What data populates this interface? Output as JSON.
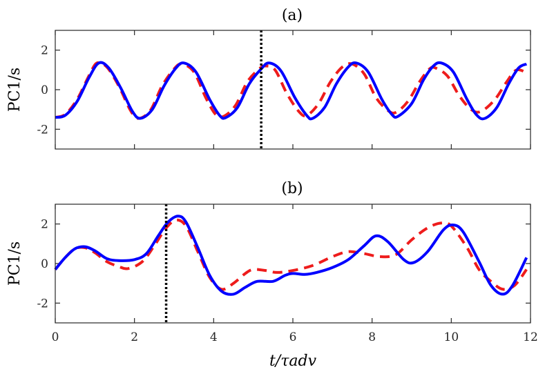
{
  "chart_data": [
    {
      "type": "line",
      "panel": "a",
      "title": "(a)",
      "ylabel": "PC1/s",
      "xlabel": "",
      "xlim": [
        0,
        12
      ],
      "ylim": [
        -3,
        3
      ],
      "yticks": [
        -2,
        0,
        2
      ],
      "yticklabels": [
        "-2",
        "0",
        "2"
      ],
      "xticks": [
        0,
        2,
        4,
        6,
        8,
        10,
        12
      ],
      "xticklabels": [],
      "marker_x": 5.2,
      "marker_style": "black dotted vertical line",
      "series": [
        {
          "name": "solid",
          "color": "#0000ff",
          "style": "solid",
          "points": [
            [
              0,
              -1.4
            ],
            [
              0.25,
              -1.3
            ],
            [
              0.55,
              -0.6
            ],
            [
              0.85,
              0.6
            ],
            [
              1.1,
              1.35
            ],
            [
              1.35,
              1.1
            ],
            [
              1.65,
              0.1
            ],
            [
              1.95,
              -1.1
            ],
            [
              2.15,
              -1.45
            ],
            [
              2.45,
              -1.0
            ],
            [
              2.75,
              0.2
            ],
            [
              3.05,
              1.1
            ],
            [
              3.25,
              1.35
            ],
            [
              3.55,
              0.9
            ],
            [
              3.9,
              -0.5
            ],
            [
              4.15,
              -1.3
            ],
            [
              4.3,
              -1.42
            ],
            [
              4.6,
              -0.9
            ],
            [
              4.9,
              0.3
            ],
            [
              5.2,
              1.05
            ],
            [
              5.4,
              1.35
            ],
            [
              5.7,
              0.95
            ],
            [
              6.05,
              -0.4
            ],
            [
              6.35,
              -1.3
            ],
            [
              6.5,
              -1.45
            ],
            [
              6.8,
              -0.9
            ],
            [
              7.1,
              0.3
            ],
            [
              7.4,
              1.15
            ],
            [
              7.6,
              1.35
            ],
            [
              7.9,
              0.9
            ],
            [
              8.25,
              -0.5
            ],
            [
              8.5,
              -1.25
            ],
            [
              8.65,
              -1.35
            ],
            [
              9.0,
              -0.7
            ],
            [
              9.3,
              0.5
            ],
            [
              9.55,
              1.2
            ],
            [
              9.75,
              1.35
            ],
            [
              10.05,
              0.9
            ],
            [
              10.4,
              -0.5
            ],
            [
              10.65,
              -1.3
            ],
            [
              10.85,
              -1.45
            ],
            [
              11.15,
              -0.9
            ],
            [
              11.45,
              0.3
            ],
            [
              11.7,
              1.1
            ],
            [
              11.9,
              1.3
            ]
          ]
        },
        {
          "name": "dashed",
          "color": "#ee1c1c",
          "style": "dashed",
          "points": [
            [
              0,
              -1.4
            ],
            [
              0.25,
              -1.25
            ],
            [
              0.55,
              -0.5
            ],
            [
              0.85,
              0.7
            ],
            [
              1.05,
              1.35
            ],
            [
              1.3,
              1.15
            ],
            [
              1.6,
              0.2
            ],
            [
              1.9,
              -1.05
            ],
            [
              2.1,
              -1.45
            ],
            [
              2.4,
              -1.05
            ],
            [
              2.7,
              0.2
            ],
            [
              3.0,
              1.05
            ],
            [
              3.2,
              1.3
            ],
            [
              3.5,
              0.9
            ],
            [
              3.8,
              -0.4
            ],
            [
              4.05,
              -1.25
            ],
            [
              4.25,
              -1.35
            ],
            [
              4.55,
              -0.8
            ],
            [
              4.85,
              0.4
            ],
            [
              5.15,
              1.05
            ],
            [
              5.3,
              1.2
            ],
            [
              5.55,
              1.0
            ],
            [
              5.85,
              -0.2
            ],
            [
              6.15,
              -1.1
            ],
            [
              6.35,
              -1.3
            ],
            [
              6.65,
              -0.7
            ],
            [
              6.95,
              0.4
            ],
            [
              7.25,
              1.15
            ],
            [
              7.5,
              1.3
            ],
            [
              7.8,
              0.8
            ],
            [
              8.1,
              -0.4
            ],
            [
              8.4,
              -1.05
            ],
            [
              8.6,
              -1.15
            ],
            [
              8.9,
              -0.6
            ],
            [
              9.2,
              0.4
            ],
            [
              9.45,
              1.05
            ],
            [
              9.6,
              1.1
            ],
            [
              9.9,
              0.7
            ],
            [
              10.2,
              -0.3
            ],
            [
              10.5,
              -1.0
            ],
            [
              10.75,
              -1.1
            ],
            [
              11.1,
              -0.5
            ],
            [
              11.4,
              0.4
            ],
            [
              11.65,
              1.0
            ],
            [
              11.95,
              0.8
            ]
          ]
        }
      ]
    },
    {
      "type": "line",
      "panel": "b",
      "title": "(b)",
      "ylabel": "PC1/s",
      "xlabel": "t/τadv",
      "xlim": [
        0,
        12
      ],
      "ylim": [
        -3,
        3
      ],
      "yticks": [
        -2,
        0,
        2
      ],
      "yticklabels": [
        "-2",
        "0",
        "2"
      ],
      "xticks": [
        0,
        2,
        4,
        6,
        8,
        10,
        12
      ],
      "xticklabels": [
        "0",
        "2",
        "4",
        "6",
        "8",
        "10",
        "12"
      ],
      "marker_x": 2.8,
      "marker_style": "black dotted vertical line",
      "series": [
        {
          "name": "solid",
          "color": "#0000ff",
          "style": "solid",
          "points": [
            [
              0,
              -0.3
            ],
            [
              0.25,
              0.3
            ],
            [
              0.5,
              0.75
            ],
            [
              0.75,
              0.85
            ],
            [
              1.0,
              0.65
            ],
            [
              1.3,
              0.25
            ],
            [
              1.6,
              0.15
            ],
            [
              2.0,
              0.2
            ],
            [
              2.3,
              0.5
            ],
            [
              2.6,
              1.4
            ],
            [
              2.85,
              2.1
            ],
            [
              3.1,
              2.4
            ],
            [
              3.3,
              2.1
            ],
            [
              3.6,
              0.8
            ],
            [
              3.9,
              -0.6
            ],
            [
              4.2,
              -1.4
            ],
            [
              4.5,
              -1.55
            ],
            [
              4.8,
              -1.2
            ],
            [
              5.1,
              -0.9
            ],
            [
              5.5,
              -0.9
            ],
            [
              5.8,
              -0.6
            ],
            [
              6.0,
              -0.5
            ],
            [
              6.3,
              -0.55
            ],
            [
              6.6,
              -0.45
            ],
            [
              7.0,
              -0.2
            ],
            [
              7.4,
              0.2
            ],
            [
              7.8,
              0.9
            ],
            [
              8.1,
              1.4
            ],
            [
              8.4,
              1.1
            ],
            [
              8.8,
              0.2
            ],
            [
              9.05,
              0.05
            ],
            [
              9.4,
              0.6
            ],
            [
              9.8,
              1.7
            ],
            [
              10.05,
              1.95
            ],
            [
              10.3,
              1.6
            ],
            [
              10.7,
              0.1
            ],
            [
              11.0,
              -1.1
            ],
            [
              11.3,
              -1.55
            ],
            [
              11.55,
              -1.1
            ],
            [
              11.9,
              0.3
            ]
          ]
        },
        {
          "name": "dashed",
          "color": "#ee1c1c",
          "style": "dashed",
          "points": [
            [
              0,
              -0.3
            ],
            [
              0.25,
              0.3
            ],
            [
              0.5,
              0.75
            ],
            [
              0.75,
              0.8
            ],
            [
              1.0,
              0.55
            ],
            [
              1.3,
              0.1
            ],
            [
              1.6,
              -0.15
            ],
            [
              1.85,
              -0.25
            ],
            [
              2.2,
              0.1
            ],
            [
              2.5,
              0.9
            ],
            [
              2.8,
              1.8
            ],
            [
              3.05,
              2.2
            ],
            [
              3.3,
              1.9
            ],
            [
              3.6,
              0.6
            ],
            [
              3.9,
              -0.7
            ],
            [
              4.2,
              -1.3
            ],
            [
              4.5,
              -1.0
            ],
            [
              4.8,
              -0.5
            ],
            [
              5.0,
              -0.3
            ],
            [
              5.3,
              -0.35
            ],
            [
              5.6,
              -0.45
            ],
            [
              6.0,
              -0.35
            ],
            [
              6.5,
              -0.1
            ],
            [
              7.0,
              0.35
            ],
            [
              7.4,
              0.6
            ],
            [
              7.8,
              0.5
            ],
            [
              8.2,
              0.35
            ],
            [
              8.6,
              0.45
            ],
            [
              9.0,
              1.2
            ],
            [
              9.4,
              1.8
            ],
            [
              9.75,
              2.05
            ],
            [
              10.0,
              1.9
            ],
            [
              10.4,
              0.8
            ],
            [
              10.7,
              -0.3
            ],
            [
              11.0,
              -0.9
            ],
            [
              11.3,
              -1.3
            ],
            [
              11.6,
              -1.1
            ],
            [
              11.9,
              -0.3
            ]
          ]
        }
      ]
    }
  ]
}
